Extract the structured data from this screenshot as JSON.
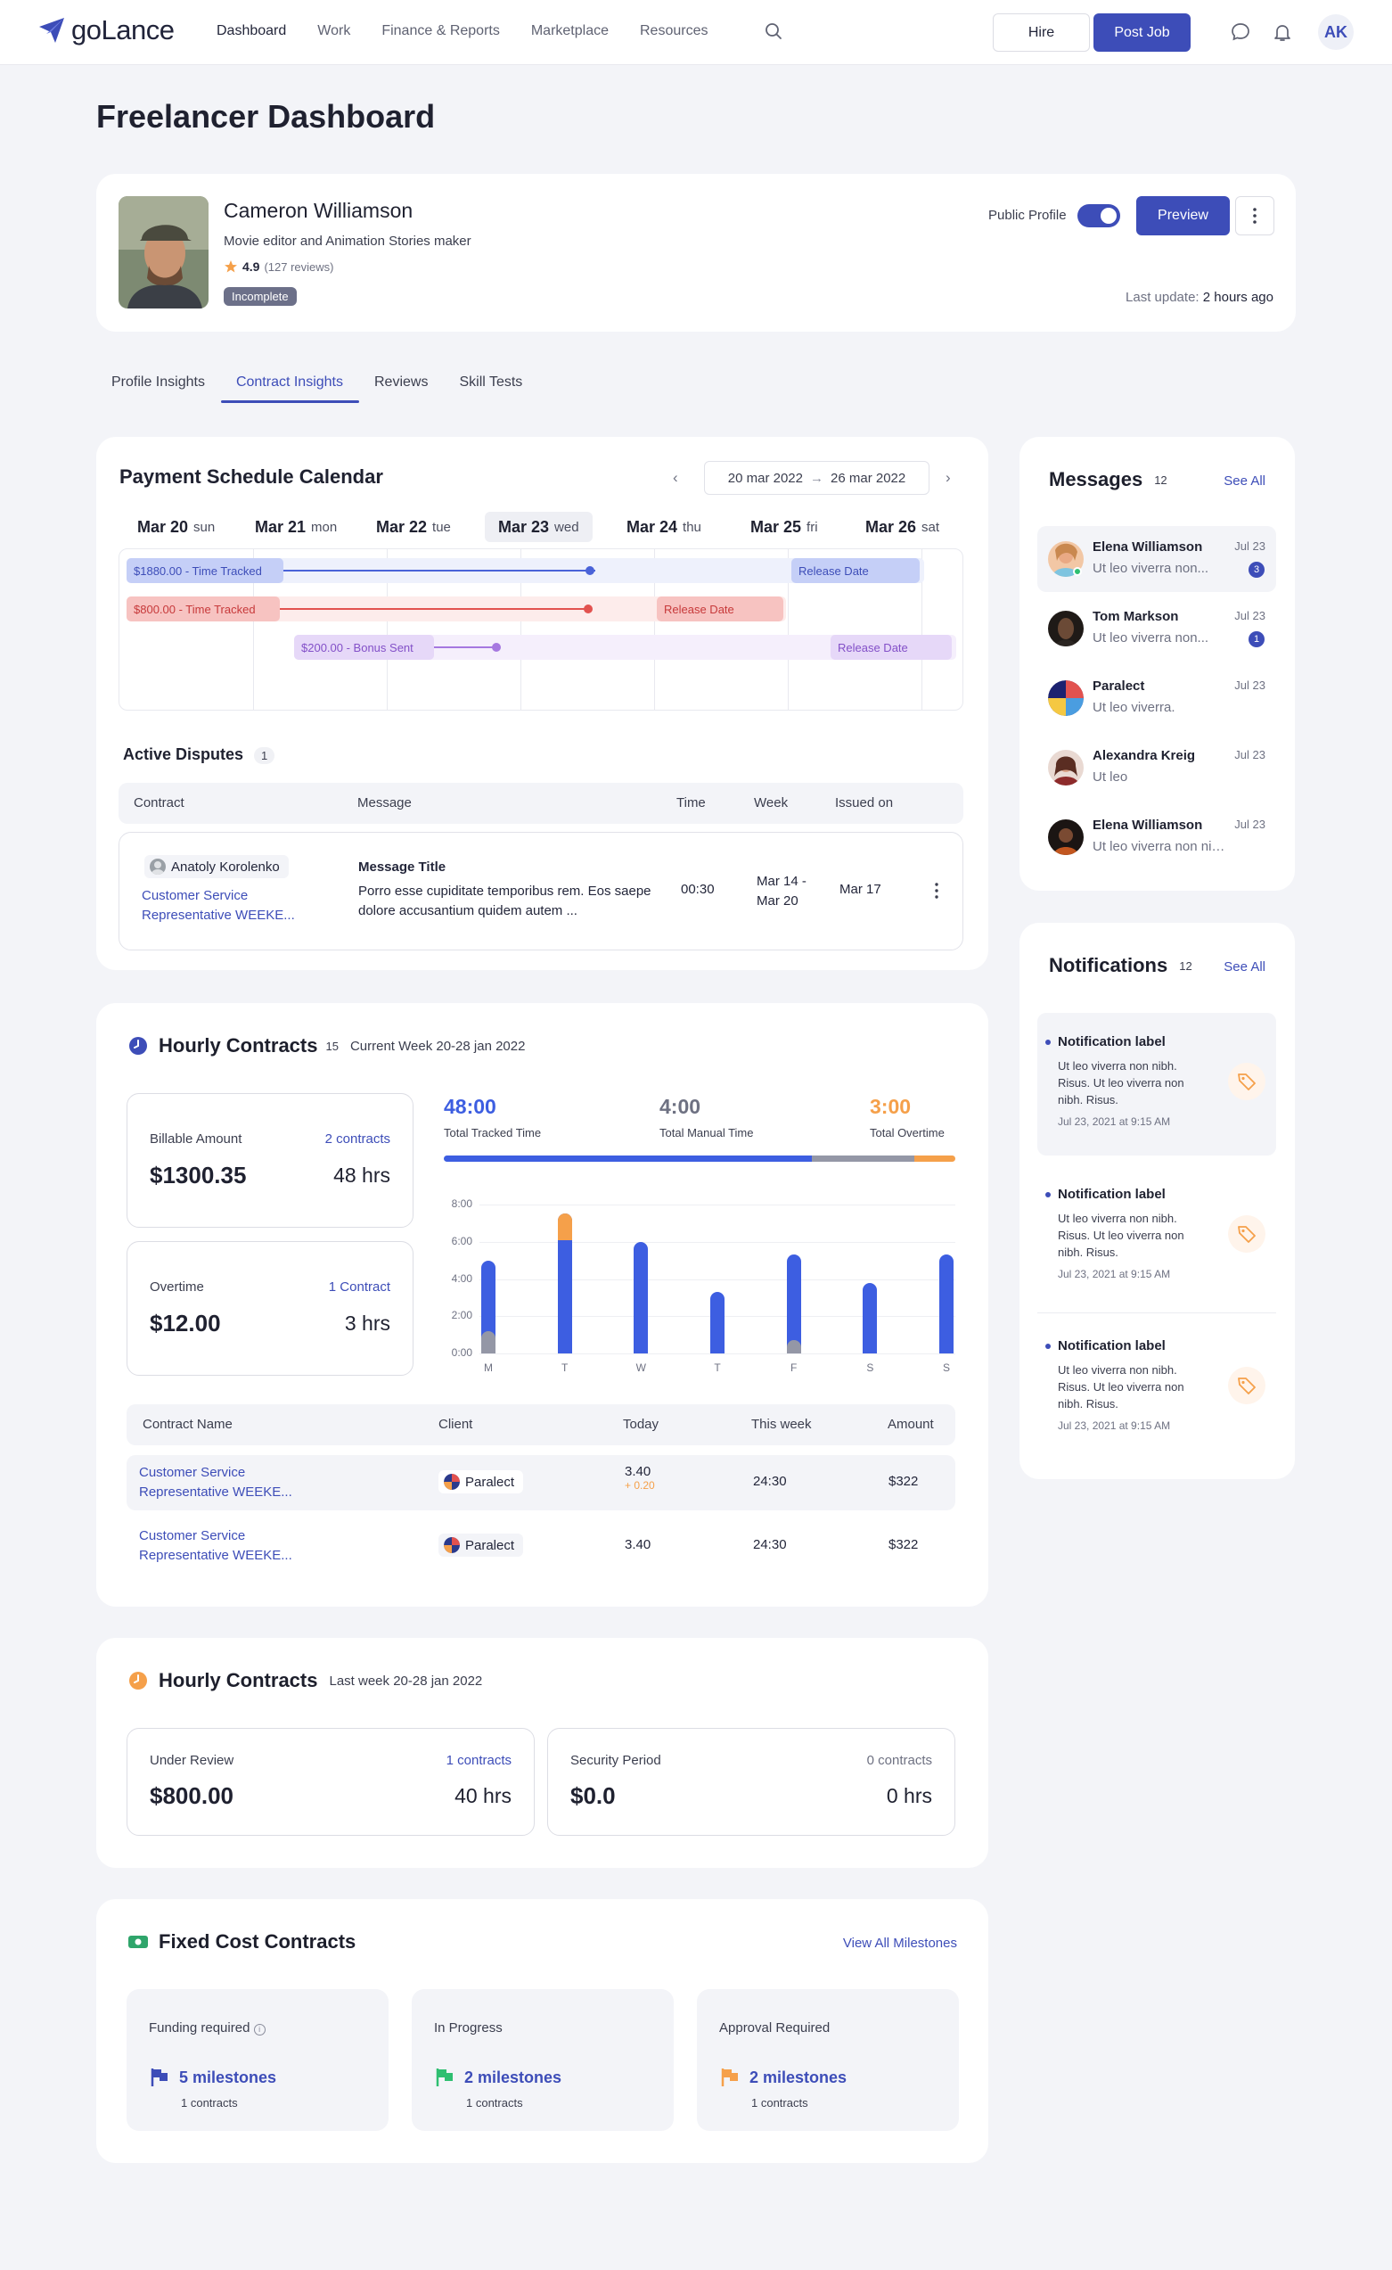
{
  "header": {
    "logo_text": "goLance",
    "nav": [
      "Dashboard",
      "Work",
      "Finance & Reports",
      "Marketplace",
      "Resources"
    ],
    "hire_label": "Hire",
    "post_job_label": "Post Job",
    "avatar_initials": "AK",
    "accent_color": "#3d4db8"
  },
  "page": {
    "title": "Freelancer Dashboard"
  },
  "profile": {
    "name": "Cameron Williamson",
    "role": "Movie editor and Animation Stories maker",
    "rating": "4.9",
    "reviews": "(127 reviews)",
    "status_badge": "Incomplete",
    "public_profile_label": "Public Profile",
    "public_profile_on": true,
    "preview_label": "Preview",
    "last_update_label": "Last update:",
    "last_update_value": "2 hours ago"
  },
  "tabs": [
    "Profile Insights",
    "Contract Insights",
    "Reviews",
    "Skill Tests"
  ],
  "active_tab": "Contract Insights",
  "payment_calendar": {
    "title": "Payment Schedule Calendar",
    "range_start": "20 mar 2022",
    "range_end": "26 mar 2022",
    "days": [
      {
        "date": "Mar 20",
        "weekday": "sun"
      },
      {
        "date": "Mar 21",
        "weekday": "mon"
      },
      {
        "date": "Mar 22",
        "weekday": "tue"
      },
      {
        "date": "Mar 23",
        "weekday": "wed"
      },
      {
        "date": "Mar 24",
        "weekday": "thu"
      },
      {
        "date": "Mar 25",
        "weekday": "fri"
      },
      {
        "date": "Mar 26",
        "weekday": "sat"
      }
    ],
    "today": "Mar 23",
    "events": [
      {
        "label": "$1880.00 - Time Tracked",
        "release": "Release Date",
        "color": "#4a63d8"
      },
      {
        "label": "$800.00 - Time Tracked",
        "release": "Release Date",
        "color": "#e2524f"
      },
      {
        "label": "$200.00 - Bonus Sent",
        "release": "Release Date",
        "color": "#a678e0"
      }
    ]
  },
  "disputes": {
    "title": "Active Disputes",
    "count": "1",
    "columns": [
      "Contract",
      "Message",
      "Time",
      "Week",
      "Issued on"
    ],
    "rows": [
      {
        "person": "Anatoly Korolenko",
        "contract": "Customer Service Representative WEEKE...",
        "message_title": "Message Title",
        "message_body": "Porro esse cupiditate temporibus rem. Eos saepe dolore accusantium quidem autem ...",
        "time": "00:30",
        "week": "Mar 14 - Mar 20",
        "issued": "Mar 17"
      }
    ]
  },
  "hourly_current": {
    "title": "Hourly Contracts",
    "count": "15",
    "subtitle": "Current Week 20-28 jan 2022",
    "billable": {
      "label": "Billable Amount",
      "link": "2 contracts",
      "amount": "$1300.35",
      "hours": "48 hrs"
    },
    "overtime": {
      "label": "Overtime",
      "link": "1 Contract",
      "amount": "$12.00",
      "hours": "3 hrs"
    },
    "totals": [
      {
        "value": "48:00",
        "label": "Total Tracked Time",
        "color": "#3d5ee1"
      },
      {
        "value": "4:00",
        "label": "Total Manual Time",
        "color": "#6e7182"
      },
      {
        "value": "3:00",
        "label": "Total Overtime",
        "color": "#f5a04a"
      }
    ],
    "table": {
      "columns": [
        "Contract Name",
        "Client",
        "Today",
        "This week",
        "Amount"
      ],
      "rows": [
        {
          "contract": "Customer Service Representative WEEKE...",
          "client": "Paralect",
          "today": "3.40",
          "delta": "+ 0.20",
          "week": "24:30",
          "amount": "$322"
        },
        {
          "contract": "Customer Service Representative WEEKE...",
          "client": "Paralect",
          "today": "3.40",
          "delta": "",
          "week": "24:30",
          "amount": "$322"
        }
      ]
    }
  },
  "chart_data": {
    "type": "bar",
    "categories": [
      "M",
      "T",
      "W",
      "T",
      "F",
      "S",
      "S"
    ],
    "series": [
      {
        "name": "Tracked",
        "values": [
          5.0,
          6.1,
          6.0,
          3.3,
          5.3,
          3.8,
          5.3
        ]
      },
      {
        "name": "Manual",
        "values": [
          1.2,
          0,
          0,
          0,
          0.7,
          0,
          0
        ]
      },
      {
        "name": "Overtime",
        "values": [
          0,
          1.4,
          0,
          0,
          0,
          0,
          0
        ]
      }
    ],
    "ylim": [
      0,
      8
    ],
    "yticks": [
      "8:00",
      "6:00",
      "4:00",
      "2:00",
      "0:00"
    ],
    "colors": [
      "#3d5ee1",
      "#9497a6",
      "#f5a04a"
    ]
  },
  "hourly_last": {
    "title": "Hourly Contracts",
    "subtitle": "Last week 20-28 jan 2022",
    "review": {
      "label": "Under Review",
      "link": "1 contracts",
      "amount": "$800.00",
      "hours": "40 hrs"
    },
    "security": {
      "label": "Security Period",
      "link": "0 contracts",
      "amount": "$0.0",
      "hours": "0 hrs"
    }
  },
  "fixed_cost": {
    "title": "Fixed Cost Contracts",
    "view_all": "View All Milestones",
    "boxes": [
      {
        "label": "Funding required",
        "milestones": "5 milestones",
        "contracts": "1 contracts",
        "flag_color": "#3d4db8"
      },
      {
        "label": "In Progress",
        "milestones": "2 milestones",
        "contracts": "1 contracts",
        "flag_color": "#2fbf71"
      },
      {
        "label": "Approval Required",
        "milestones": "2 milestones",
        "contracts": "1 contracts",
        "flag_color": "#f5a04a"
      }
    ]
  },
  "messages": {
    "title": "Messages",
    "count": "12",
    "see_all": "See All",
    "items": [
      {
        "name": "Elena Williamson",
        "text": "Ut leo viverra non...",
        "date": "Jul 23",
        "unread": "3"
      },
      {
        "name": "Tom Markson",
        "text": "Ut leo viverra non...",
        "date": "Jul 23",
        "unread": "1"
      },
      {
        "name": "Paralect",
        "text": "Ut leo viverra.",
        "date": "Jul 23",
        "unread": ""
      },
      {
        "name": "Alexandra Kreig",
        "text": "Ut leo",
        "date": "Jul 23",
        "unread": ""
      },
      {
        "name": "Elena Williamson",
        "text": "Ut leo viverra non nibh...",
        "date": "Jul 23",
        "unread": ""
      }
    ]
  },
  "notifications": {
    "title": "Notifications",
    "count": "12",
    "see_all": "See All",
    "items": [
      {
        "title": "Notification label",
        "body": "Ut leo viverra non nibh. Risus. Ut leo viverra non nibh. Risus.",
        "time": "Jul 23, 2021 at 9:15 AM"
      },
      {
        "title": "Notification label",
        "body": "Ut leo viverra non nibh. Risus. Ut leo viverra non nibh. Risus.",
        "time": "Jul 23, 2021 at 9:15 AM"
      },
      {
        "title": "Notification label",
        "body": "Ut leo viverra non nibh. Risus. Ut leo viverra non nibh. Risus.",
        "time": "Jul 23, 2021 at 9:15 AM"
      }
    ]
  }
}
